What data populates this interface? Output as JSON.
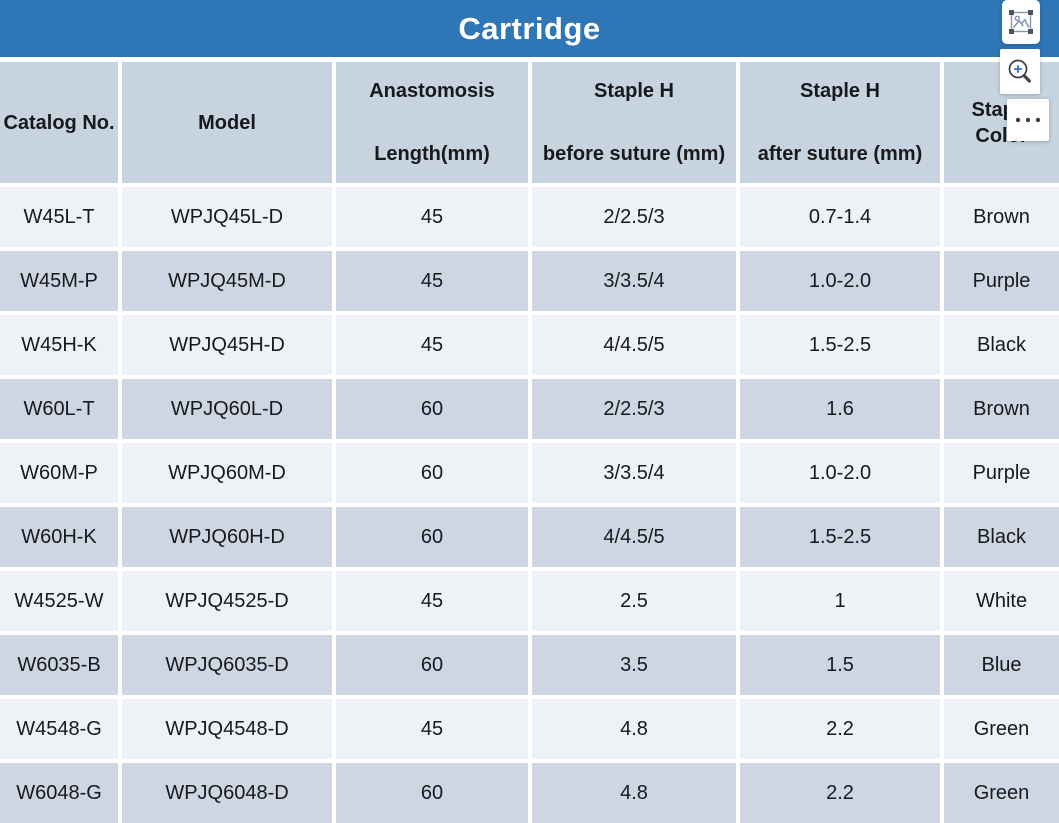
{
  "title": "Cartridge",
  "colors": {
    "banner_blue": "#2e76b5",
    "header_cell_bg": "#c8d3e0",
    "row_light_bg": "#eef1f6",
    "row_dark_bg": "#cdd6e2",
    "zoom_plus_blue": "#3c79c9",
    "text_dark": "#17191c"
  },
  "toolbar": {
    "buttons": [
      {
        "name": "image-select",
        "icon": "image-select-icon"
      },
      {
        "name": "zoom-in",
        "icon": "zoom-in-icon"
      },
      {
        "name": "more",
        "icon": "more-icon"
      }
    ]
  },
  "table": {
    "headers": [
      {
        "id": "catalog-no",
        "lines": [
          "Catalog No."
        ]
      },
      {
        "id": "model",
        "lines": [
          "Model"
        ]
      },
      {
        "id": "anastomosis-length",
        "lines": [
          "Anastomosis",
          "Length(mm)"
        ]
      },
      {
        "id": "staple-h-before",
        "lines": [
          "Staple H",
          "before suture (mm)"
        ]
      },
      {
        "id": "staple-h-after",
        "lines": [
          "Staple H",
          "after suture (mm)"
        ]
      },
      {
        "id": "staple-color",
        "lines": [
          "Staple",
          "Color"
        ]
      }
    ],
    "rows": [
      [
        "W45L-T",
        "WPJQ45L-D",
        "45",
        "2/2.5/3",
        "0.7-1.4",
        "Brown"
      ],
      [
        "W45M-P",
        "WPJQ45M-D",
        "45",
        "3/3.5/4",
        "1.0-2.0",
        "Purple"
      ],
      [
        "W45H-K",
        "WPJQ45H-D",
        "45",
        "4/4.5/5",
        "1.5-2.5",
        "Black"
      ],
      [
        "W60L-T",
        "WPJQ60L-D",
        "60",
        "2/2.5/3",
        "1.6",
        "Brown"
      ],
      [
        "W60M-P",
        "WPJQ60M-D",
        "60",
        "3/3.5/4",
        "1.0-2.0",
        "Purple"
      ],
      [
        "W60H-K",
        "WPJQ60H-D",
        "60",
        "4/4.5/5",
        "1.5-2.5",
        "Black"
      ],
      [
        "W4525-W",
        "WPJQ4525-D",
        "45",
        "2.5",
        "1",
        "White"
      ],
      [
        "W6035-B",
        "WPJQ6035-D",
        "60",
        "3.5",
        "1.5",
        "Blue"
      ],
      [
        "W4548-G",
        "WPJQ4548-D",
        "45",
        "4.8",
        "2.2",
        "Green"
      ],
      [
        "W6048-G",
        "WPJQ6048-D",
        "60",
        "4.8",
        "2.2",
        "Green"
      ]
    ]
  }
}
